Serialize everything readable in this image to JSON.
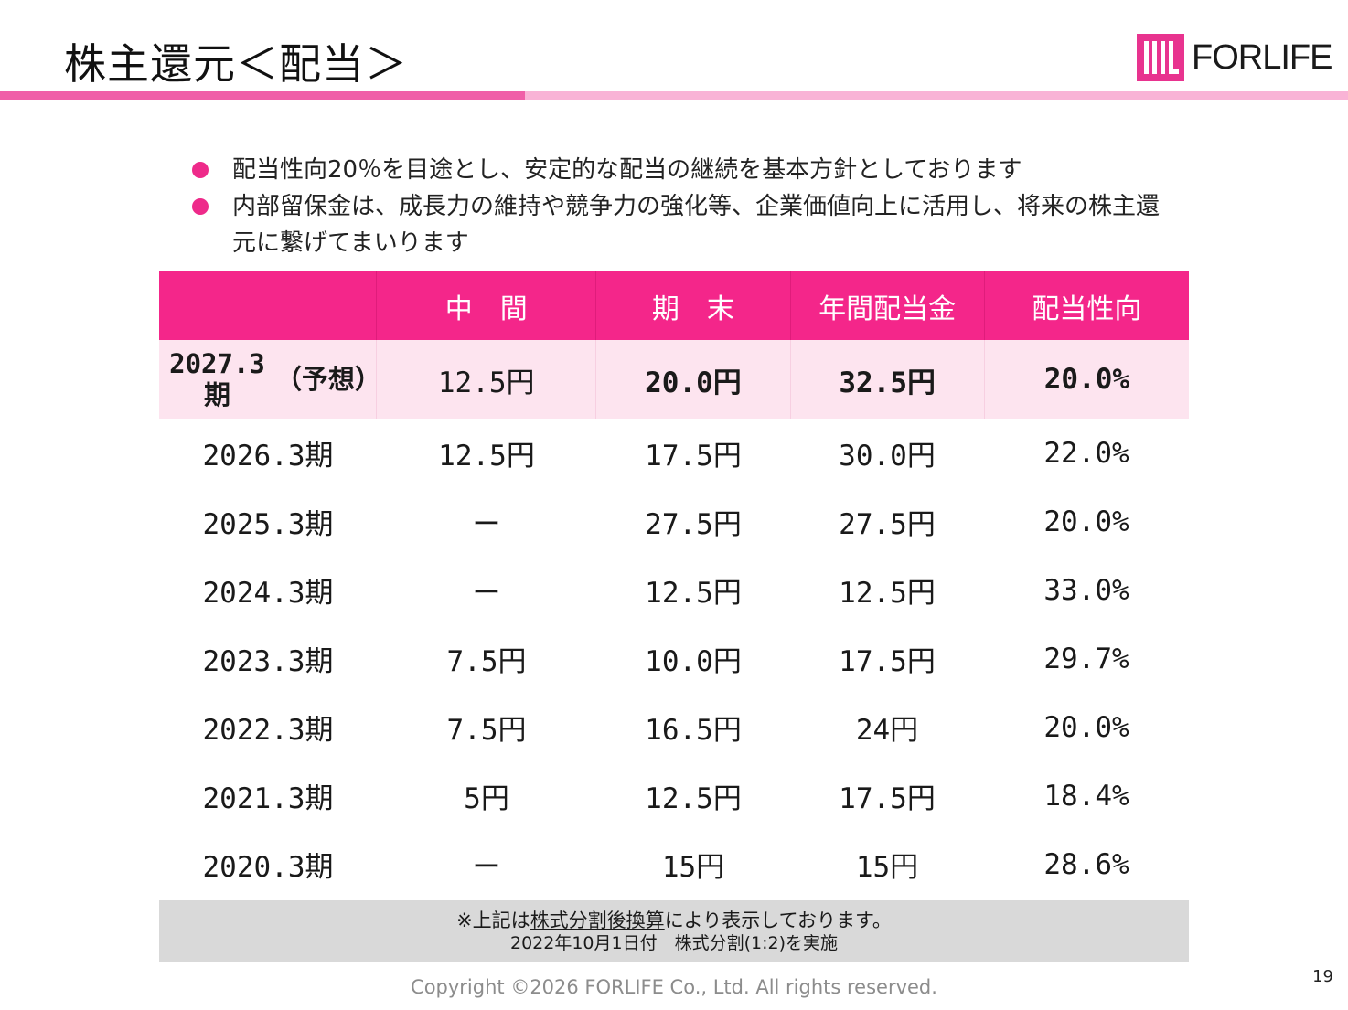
{
  "header": {
    "title": "株主還元＜配当＞",
    "logo_text": "FORLIFE",
    "logo_icon": "forlife-logo-mark",
    "accent_colors": {
      "primary": "#f4268a",
      "bar_dark": "#f05fa8",
      "bar_light": "#f9b3d6",
      "forecast_bg": "#fde4ef"
    }
  },
  "bullets": [
    "配当性向20％を目途とし、安定的な配当の継続を基本方針としております",
    "内部留保金は、成長力の維持や競争力の強化等、企業価値向上に活用し、将来の株主還元に繋げてまいります"
  ],
  "table": {
    "columns": [
      "",
      "中　間",
      "期　末",
      "年間配当金",
      "配当性向"
    ],
    "forecast": {
      "period_line1": "2027.3期",
      "period_line2": "（予想）",
      "interim": "12.5円",
      "year_end": "20.0円",
      "annual": "32.5円",
      "payout": "20.0%"
    },
    "rows": [
      {
        "period": "2026.3期",
        "interim": "12.5円",
        "year_end": "17.5円",
        "annual": "30.0円",
        "payout": "22.0%"
      },
      {
        "period": "2025.3期",
        "interim": "ー",
        "year_end": "27.5円",
        "annual": "27.5円",
        "payout": "20.0%"
      },
      {
        "period": "2024.3期",
        "interim": "ー",
        "year_end": "12.5円",
        "annual": "12.5円",
        "payout": "33.0%"
      },
      {
        "period": "2023.3期",
        "interim": "7.5円",
        "year_end": "10.0円",
        "annual": "17.5円",
        "payout": "29.7%"
      },
      {
        "period": "2022.3期",
        "interim": "7.5円",
        "year_end": "16.5円",
        "annual": "24円",
        "payout": "20.0%"
      },
      {
        "period": "2021.3期",
        "interim": "5円",
        "year_end": "12.5円",
        "annual": "17.5円",
        "payout": "18.4%"
      },
      {
        "period": "2020.3期",
        "interim": "ー",
        "year_end": "15円",
        "annual": "15円",
        "payout": "28.6%"
      }
    ]
  },
  "note": {
    "prefix": "※上記は",
    "underlined": "株式分割後換算",
    "suffix": "により表示しております。",
    "line2": "2022年10月1日付　株式分割(1:2)を実施"
  },
  "footer": {
    "copyright": "Copyright ©2026 FORLIFE Co., Ltd. All rights reserved.",
    "page_number": "19"
  }
}
